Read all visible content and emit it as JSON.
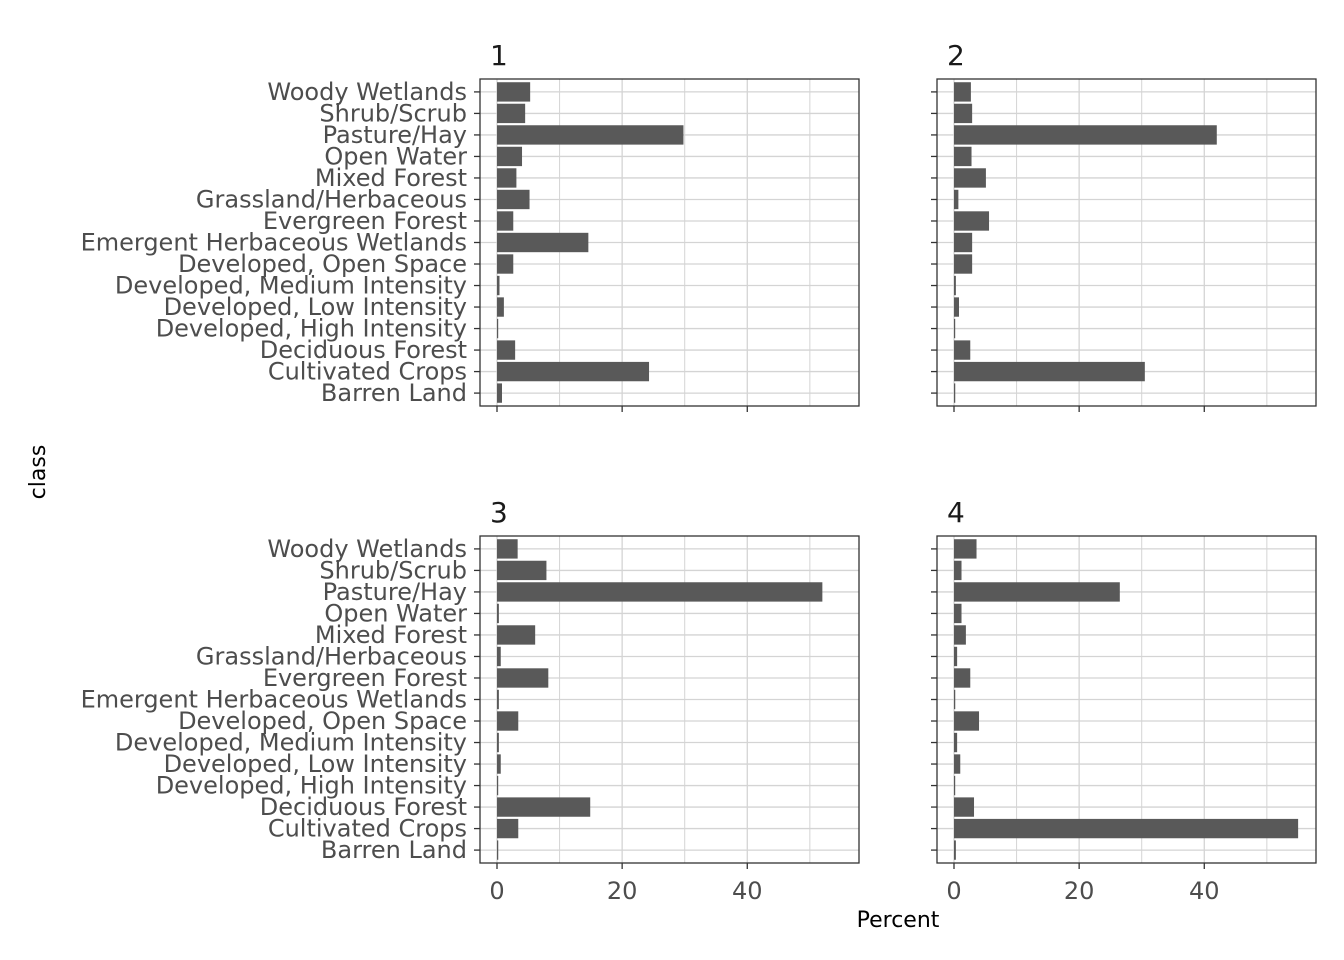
{
  "chart_data": {
    "type": "bar",
    "orientation": "horizontal",
    "facet_layout": "2x2 grid",
    "xlabel": "Percent",
    "ylabel": "class",
    "xlim": [
      0,
      57
    ],
    "xticks": [
      "0",
      "20",
      "40"
    ],
    "xtick_values": [
      0,
      20,
      40
    ],
    "grid": true,
    "colors": {
      "bar": "#595959",
      "grid": "#d4d4d4",
      "frame": "#333333"
    },
    "categories": [
      "Barren Land",
      "Cultivated Crops",
      "Deciduous Forest",
      "Developed, High Intensity",
      "Developed, Low Intensity",
      "Developed, Medium Intensity",
      "Developed, Open Space",
      "Emergent Herbaceous Wetlands",
      "Evergreen Forest",
      "Grassland/Herbaceous",
      "Mixed Forest",
      "Open Water",
      "Pasture/Hay",
      "Shrub/Scrub",
      "Woody Wetlands"
    ],
    "panels": [
      {
        "label": "1",
        "values": [
          0.8,
          24.3,
          2.9,
          0.1,
          1.1,
          0.4,
          2.6,
          14.6,
          2.6,
          5.2,
          3.1,
          4.0,
          29.8,
          4.5,
          5.3
        ]
      },
      {
        "label": "2",
        "values": [
          0.2,
          30.5,
          2.6,
          0.1,
          0.8,
          0.3,
          2.9,
          2.9,
          5.6,
          0.7,
          5.1,
          2.8,
          42.0,
          2.9,
          2.7
        ]
      },
      {
        "label": "3",
        "values": [
          0.2,
          3.4,
          14.9,
          0.1,
          0.6,
          0.3,
          3.4,
          0.3,
          8.2,
          0.6,
          6.1,
          0.3,
          52.0,
          7.9,
          3.3
        ]
      },
      {
        "label": "4",
        "values": [
          0.3,
          55.0,
          3.2,
          0.1,
          1.0,
          0.5,
          4.0,
          0.2,
          2.6,
          0.5,
          1.9,
          1.2,
          26.5,
          1.2,
          3.6
        ]
      }
    ]
  }
}
